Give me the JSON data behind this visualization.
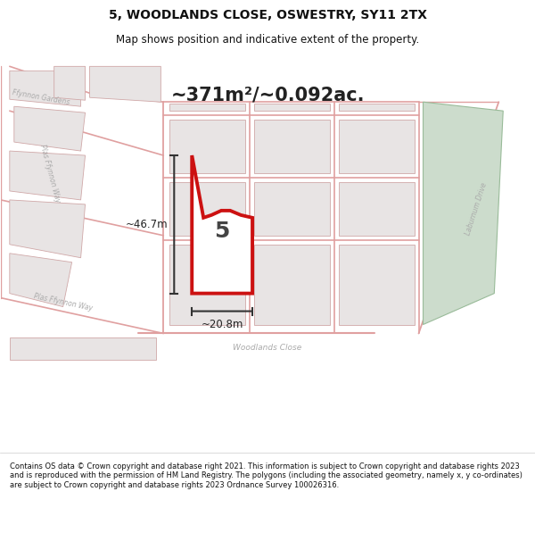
{
  "title_line1": "5, WOODLANDS CLOSE, OSWESTRY, SY11 2TX",
  "title_line2": "Map shows position and indicative extent of the property.",
  "area_text": "~371m²/~0.092ac.",
  "label_number": "5",
  "dim_vertical": "~46.7m",
  "dim_horizontal": "~20.8m",
  "footer": "Contains OS data © Crown copyright and database right 2021. This information is subject to Crown copyright and database rights 2023 and is reproduced with the permission of HM Land Registry. The polygons (including the associated geometry, namely x, y co-ordinates) are subject to Crown copyright and database rights 2023 Ordnance Survey 100026316.",
  "bg_map_color": "#f2eded",
  "plot_fill_color": "#ffffff",
  "plot_outline_color": "#cc1111",
  "green_area_color": "#ccdccc",
  "footer_color": "#111111",
  "title_color": "#111111",
  "road_line_color": "#e0a0a0",
  "building_face_color": "#e8e4e4",
  "building_edge_color": "#d0a8a8"
}
